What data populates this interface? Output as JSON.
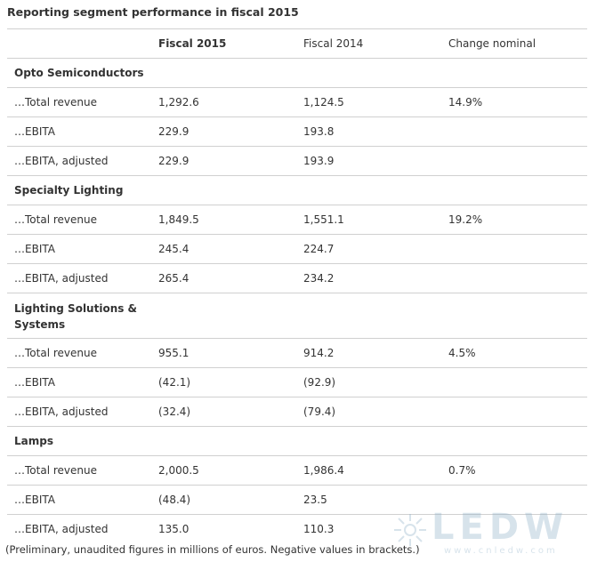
{
  "title": "Reporting segment performance in fiscal 2015",
  "columns": [
    "",
    "Fiscal 2015",
    "Fiscal 2014",
    "Change nominal"
  ],
  "sections": [
    {
      "name": "Opto Semiconductors",
      "rows": [
        {
          "label": "…Total revenue",
          "fy2015": "1,292.6",
          "fy2014": "1,124.5",
          "change": "14.9%"
        },
        {
          "label": "…EBITA",
          "fy2015": "229.9",
          "fy2014": "193.8",
          "change": ""
        },
        {
          "label": "…EBITA, adjusted",
          "fy2015": "229.9",
          "fy2014": "193.9",
          "change": ""
        }
      ]
    },
    {
      "name": "Specialty Lighting",
      "rows": [
        {
          "label": "…Total revenue",
          "fy2015": "1,849.5",
          "fy2014": "1,551.1",
          "change": "19.2%"
        },
        {
          "label": "…EBITA",
          "fy2015": "245.4",
          "fy2014": "224.7",
          "change": ""
        },
        {
          "label": "…EBITA, adjusted",
          "fy2015": "265.4",
          "fy2014": "234.2",
          "change": ""
        }
      ]
    },
    {
      "name": "Lighting Solutions & Systems",
      "rows": [
        {
          "label": "…Total revenue",
          "fy2015": "955.1",
          "fy2014": "914.2",
          "change": "4.5%"
        },
        {
          "label": "…EBITA",
          "fy2015": "(42.1)",
          "fy2014": "(92.9)",
          "change": ""
        },
        {
          "label": "…EBITA, adjusted",
          "fy2015": "(32.4)",
          "fy2014": "(79.4)",
          "change": ""
        }
      ]
    },
    {
      "name": "Lamps",
      "rows": [
        {
          "label": "…Total revenue",
          "fy2015": "2,000.5",
          "fy2014": "1,986.4",
          "change": "0.7%"
        },
        {
          "label": "…EBITA",
          "fy2015": "(48.4)",
          "fy2014": "23.5",
          "change": ""
        },
        {
          "label": "…EBITA, adjusted",
          "fy2015": "135.0",
          "fy2014": "110.3",
          "change": ""
        }
      ]
    }
  ],
  "footnote": "(Preliminary, unaudited figures in millions of euros. Negative values in brackets.)",
  "watermark": {
    "main": "LEDW",
    "sub": "www.cnledw.com"
  }
}
